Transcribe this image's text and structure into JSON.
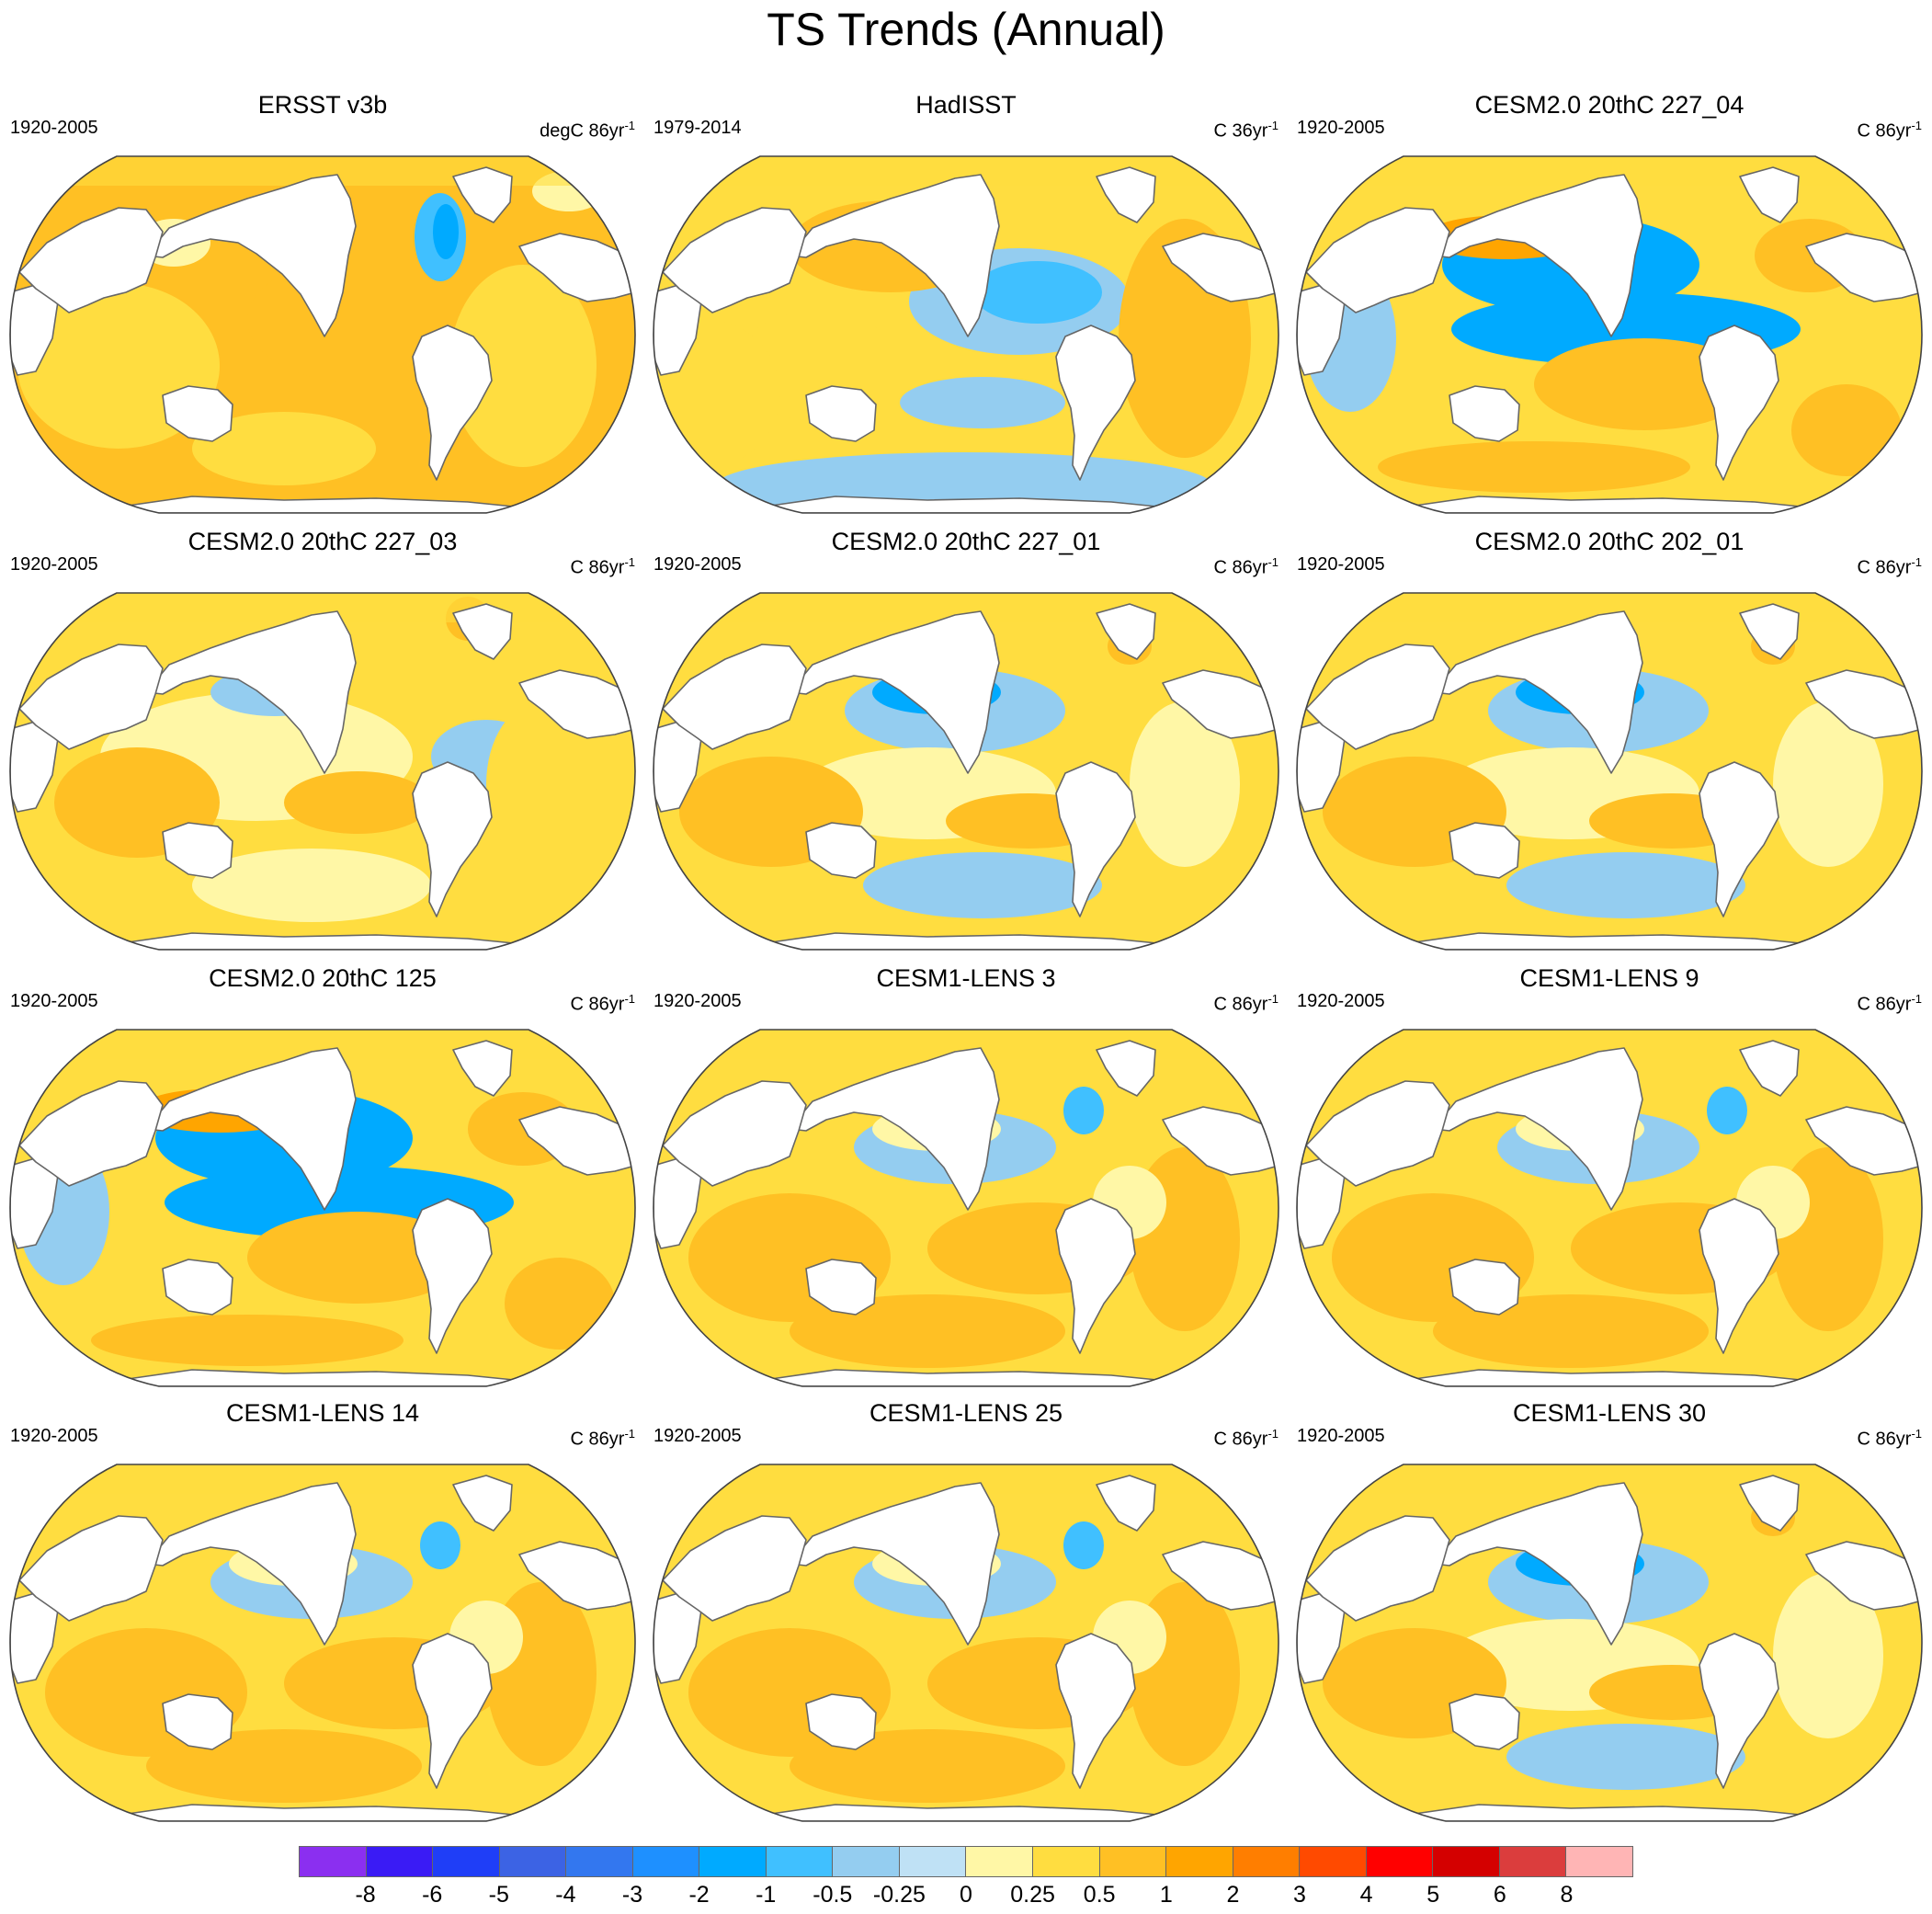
{
  "figure": {
    "title": "TS Trends (Annual)"
  },
  "panels": [
    {
      "title": "ERSST v3b",
      "period": "1920-2005",
      "units": "degC 86yr",
      "units_exp": "-1",
      "pattern": "warm-strong"
    },
    {
      "title": "HadISST",
      "period": "1979-2014",
      "units": "C 36yr",
      "units_exp": "-1",
      "pattern": "la-nina"
    },
    {
      "title": "CESM2.0 20thC 227_04",
      "period": "1920-2005",
      "units": "C 86yr",
      "units_exp": "-1",
      "pattern": "pdo-cold"
    },
    {
      "title": "CESM2.0 20thC 227_03",
      "period": "1920-2005",
      "units": "C 86yr",
      "units_exp": "-1",
      "pattern": "mild"
    },
    {
      "title": "CESM2.0 20thC 227_01",
      "period": "1920-2005",
      "units": "C 86yr",
      "units_exp": "-1",
      "pattern": "np-cold"
    },
    {
      "title": "CESM2.0 20thC 202_01",
      "period": "1920-2005",
      "units": "C 86yr",
      "units_exp": "-1",
      "pattern": "np-cold"
    },
    {
      "title": "CESM2.0 20thC 125",
      "period": "1920-2005",
      "units": "C 86yr",
      "units_exp": "-1",
      "pattern": "pdo-cold"
    },
    {
      "title": "CESM1-LENS 3",
      "period": "1920-2005",
      "units": "C 86yr",
      "units_exp": "-1",
      "pattern": "warm"
    },
    {
      "title": "CESM1-LENS 9",
      "period": "1920-2005",
      "units": "C 86yr",
      "units_exp": "-1",
      "pattern": "warm"
    },
    {
      "title": "CESM1-LENS 14",
      "period": "1920-2005",
      "units": "C 86yr",
      "units_exp": "-1",
      "pattern": "warm"
    },
    {
      "title": "CESM1-LENS 25",
      "period": "1920-2005",
      "units": "C 86yr",
      "units_exp": "-1",
      "pattern": "warm"
    },
    {
      "title": "CESM1-LENS 30",
      "period": "1920-2005",
      "units": "C 86yr",
      "units_exp": "-1",
      "pattern": "np-cold"
    }
  ],
  "colorbar": {
    "colors": [
      "#8b2ff0",
      "#3a1bf5",
      "#1f3ef7",
      "#3c63e4",
      "#3377ef",
      "#1e90ff",
      "#00aaff",
      "#40c0ff",
      "#94cdf0",
      "#bfe1f5",
      "#fff7a6",
      "#ffdd40",
      "#ffc024",
      "#ffa500",
      "#ff7e00",
      "#ff4a00",
      "#ff0000",
      "#d40000",
      "#db3d3d",
      "#ffb5b5"
    ],
    "labels": [
      "-8",
      "-6",
      "-5",
      "-4",
      "-3",
      "-2",
      "-1",
      "-0.5",
      "-0.25",
      "0",
      "0.25",
      "0.5",
      "1",
      "2",
      "3",
      "4",
      "5",
      "6",
      "8"
    ]
  },
  "colors": {
    "land": "#ffffff",
    "coast": "#666666",
    "frame": "#444444"
  }
}
